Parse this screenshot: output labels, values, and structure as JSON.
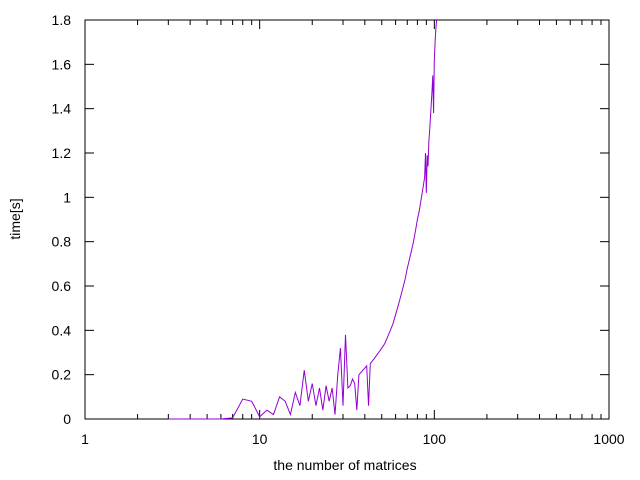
{
  "chart_data": {
    "type": "line",
    "title": "",
    "xlabel": "the number of matrices",
    "ylabel": "time[s]",
    "xscale": "log",
    "xlim": [
      1,
      1000
    ],
    "ylim": [
      0,
      1.8
    ],
    "grid": false,
    "legend": "none",
    "xticks": [
      1,
      10,
      100,
      1000
    ],
    "xtick_labels": [
      "1",
      "10",
      "100",
      "1000"
    ],
    "yticks": [
      0,
      0.2,
      0.4,
      0.6,
      0.8,
      1,
      1.2,
      1.4,
      1.6,
      1.8
    ],
    "ytick_labels": [
      "0",
      "0.2",
      "0.4",
      "0.6",
      "0.8",
      "1",
      "1.2",
      "1.4",
      "1.6",
      "1.8"
    ],
    "colors": {
      "series": "#9400d3",
      "axes": "#000000",
      "background": "#ffffff"
    },
    "series": [
      {
        "x": [
          3,
          4,
          5,
          6,
          7,
          8,
          9,
          10,
          11,
          12,
          13,
          14,
          15,
          16,
          17,
          18,
          19,
          20,
          21,
          22,
          23,
          24,
          25,
          26,
          27,
          28,
          29,
          30,
          31,
          32,
          33,
          34,
          35,
          36,
          37,
          38,
          39,
          40,
          41,
          42,
          43,
          44,
          45,
          46,
          47,
          48,
          49,
          50,
          52,
          54,
          56,
          58,
          60,
          62,
          64,
          66,
          68,
          70,
          72,
          74,
          76,
          78,
          80,
          82,
          84,
          86,
          88,
          89,
          90,
          91,
          92,
          93,
          94,
          95,
          96,
          97,
          98,
          99,
          100,
          101,
          102,
          103
        ],
        "y": [
          0,
          0,
          0,
          0,
          0.005,
          0.09,
          0.08,
          0.01,
          0.04,
          0.02,
          0.1,
          0.08,
          0.02,
          0.12,
          0.06,
          0.22,
          0.08,
          0.16,
          0.06,
          0.14,
          0.04,
          0.15,
          0.08,
          0.14,
          0.02,
          0.2,
          0.32,
          0.06,
          0.38,
          0.14,
          0.15,
          0.18,
          0.16,
          0.04,
          0.2,
          0.21,
          0.22,
          0.23,
          0.24,
          0.06,
          0.25,
          0.26,
          0.27,
          0.28,
          0.29,
          0.3,
          0.31,
          0.32,
          0.34,
          0.37,
          0.4,
          0.43,
          0.47,
          0.51,
          0.55,
          0.59,
          0.63,
          0.68,
          0.72,
          0.76,
          0.8,
          0.85,
          0.9,
          0.94,
          0.99,
          1.04,
          1.09,
          1.2,
          1.02,
          1.19,
          1.14,
          1.25,
          1.3,
          1.36,
          1.42,
          1.48,
          1.55,
          1.38,
          1.62,
          1.7,
          1.76,
          1.8
        ]
      }
    ]
  }
}
